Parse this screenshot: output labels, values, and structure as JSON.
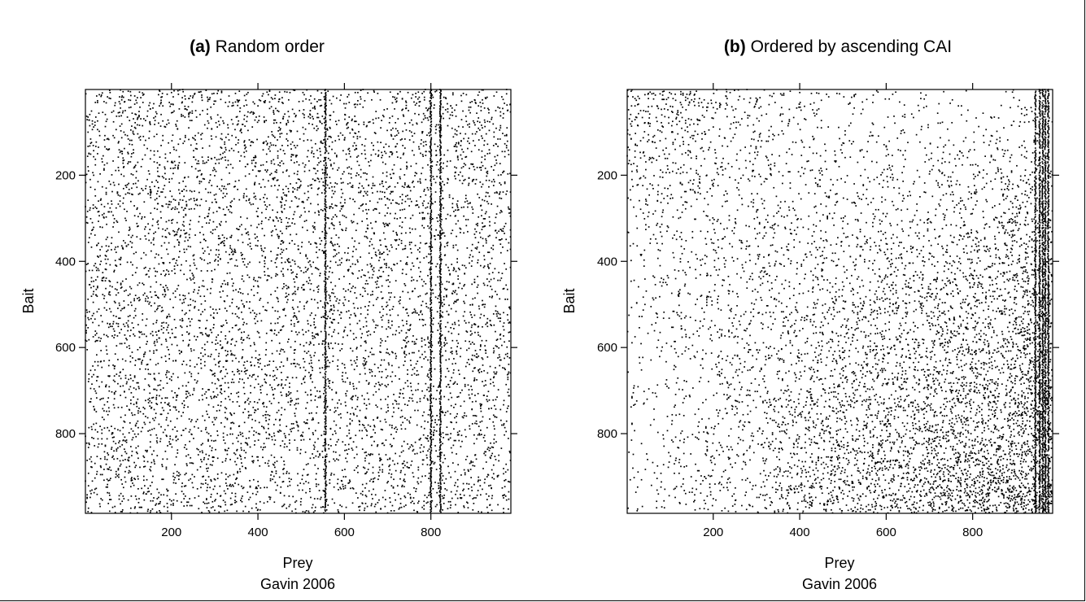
{
  "chart_data": [
    {
      "type": "scatter",
      "title_tag": "(a)",
      "title": "Random order",
      "xlabel": "Prey",
      "ylabel": "Bait",
      "subtitle": "Gavin 2006",
      "xlim": [
        1,
        985
      ],
      "ylim": [
        985,
        1
      ],
      "xticks": [
        "200",
        "400",
        "600",
        "800"
      ],
      "yticks": [
        "200",
        "400",
        "600",
        "800"
      ],
      "xtick_values": [
        200,
        400,
        600,
        800
      ],
      "ytick_values": [
        200,
        400,
        600,
        800
      ],
      "ordering": "random",
      "dense_columns": [
        556,
        800,
        822
      ],
      "point_count": 7000,
      "point_color": "#000000"
    },
    {
      "type": "scatter",
      "title_tag": "(b)",
      "title": "Ordered by ascending CAI",
      "xlabel": "Prey",
      "ylabel": "Bait",
      "subtitle": "Gavin 2006",
      "xlim": [
        1,
        985
      ],
      "ylim": [
        985,
        1
      ],
      "xticks": [
        "200",
        "400",
        "600",
        "800"
      ],
      "yticks": [
        "200",
        "400",
        "600",
        "800"
      ],
      "xtick_values": [
        200,
        400,
        600,
        800
      ],
      "ytick_values": [
        200,
        400,
        600,
        800
      ],
      "ordering": "ascending CAI",
      "dense_columns": [
        945,
        955,
        962,
        968,
        975
      ],
      "point_count": 7000,
      "point_color": "#000000"
    }
  ]
}
